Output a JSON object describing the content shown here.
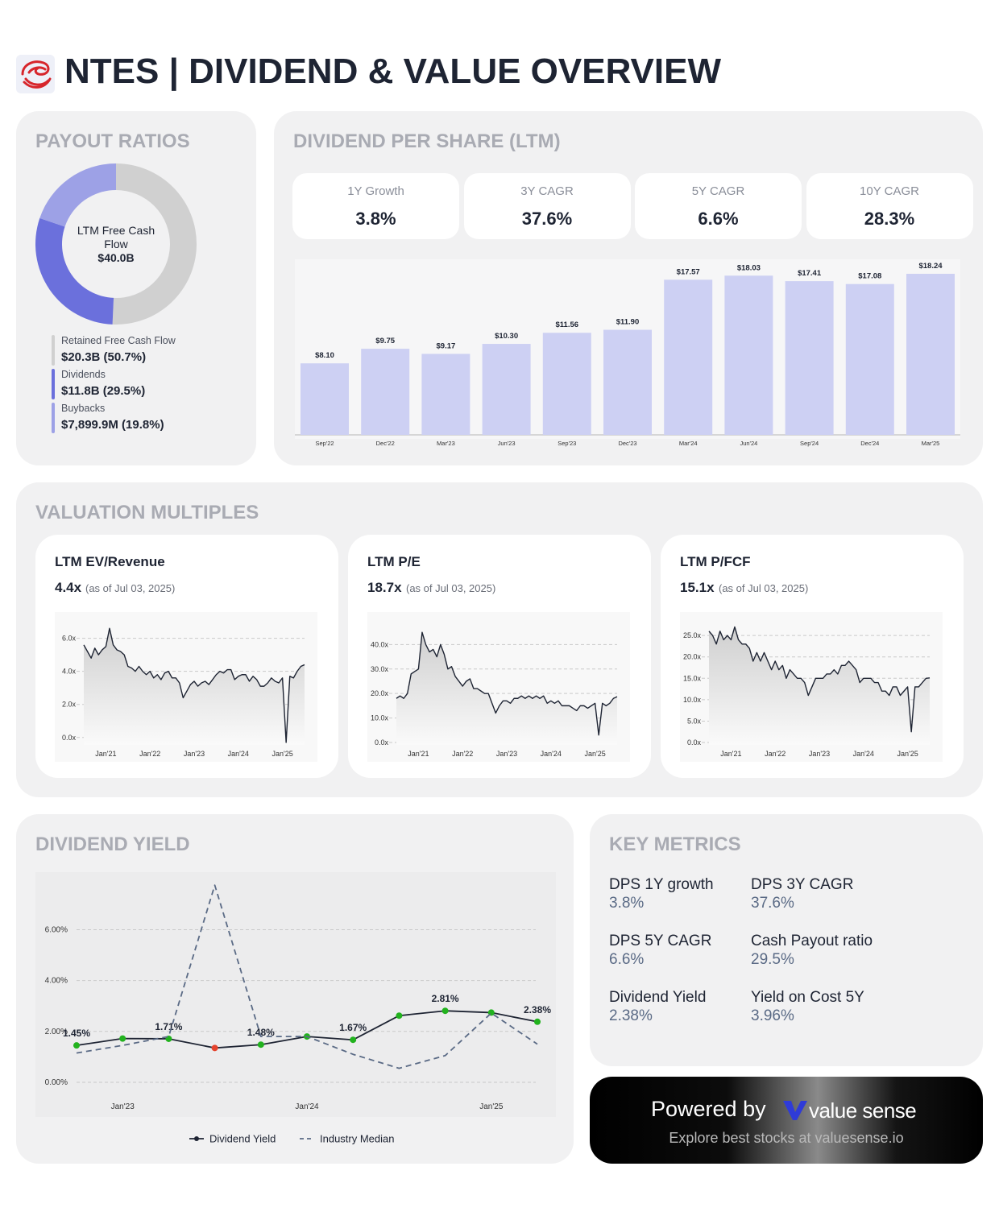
{
  "header": {
    "title": "NTES | DIVIDEND & VALUE OVERVIEW"
  },
  "payout": {
    "heading": "PAYOUT RATIOS",
    "center_label": "LTM Free Cash Flow",
    "center_value": "$40.0B"
  },
  "dps": {
    "heading": "DIVIDEND PER SHARE (LTM)",
    "stats": [
      {
        "label": "1Y Growth",
        "value": "3.8%"
      },
      {
        "label": "3Y CAGR",
        "value": "37.6%"
      },
      {
        "label": "5Y CAGR",
        "value": "6.6%"
      },
      {
        "label": "10Y CAGR",
        "value": "28.3%"
      }
    ]
  },
  "valuation": {
    "heading": "VALUATION MULTIPLES",
    "cards": [
      {
        "title": "LTM EV/Revenue",
        "value": "4.4x",
        "note": "(as of Jul 03, 2025)"
      },
      {
        "title": "LTM P/E",
        "value": "18.7x",
        "note": "(as of Jul 03, 2025)"
      },
      {
        "title": "LTM P/FCF",
        "value": "15.1x",
        "note": "(as of Jul 03, 2025)"
      }
    ]
  },
  "yield": {
    "heading": "DIVIDEND YIELD"
  },
  "key_metrics": {
    "heading": "KEY METRICS",
    "items": [
      {
        "label": "DPS 1Y growth",
        "value": "3.8%"
      },
      {
        "label": "DPS 3Y CAGR",
        "value": "37.6%"
      },
      {
        "label": "DPS 5Y CAGR",
        "value": "6.6%"
      },
      {
        "label": "Cash Payout ratio",
        "value": "29.5%"
      },
      {
        "label": "Dividend Yield",
        "value": "2.38%"
      },
      {
        "label": "Yield on Cost 5Y",
        "value": "3.96%"
      }
    ]
  },
  "footer": {
    "powered": "Powered by",
    "brand": "value sense",
    "tagline": "Explore best stocks at valuesense.io"
  },
  "chart_data": [
    {
      "type": "pie",
      "categories": [
        "Retained Free Cash Flow",
        "Dividends",
        "Buybacks"
      ],
      "values": [
        50.7,
        29.5,
        19.8
      ],
      "value_labels": [
        "$20.3B (50.7%)",
        "$11.8B (29.5%)",
        "$7,899.9M (19.8%)"
      ],
      "colors": [
        "#d0d0d0",
        "#6b70dc",
        "#9da1e6"
      ]
    },
    {
      "type": "bar",
      "categories": [
        "Sep'22",
        "Dec'22",
        "Mar'23",
        "Jun'23",
        "Sep'23",
        "Dec'23",
        "Mar'24",
        "Jun'24",
        "Sep'24",
        "Dec'24",
        "Mar'25"
      ],
      "values": [
        8.1,
        9.75,
        9.17,
        10.3,
        11.56,
        11.9,
        17.57,
        18.03,
        17.41,
        17.08,
        18.24
      ],
      "value_labels": [
        "$8.10",
        "$9.75",
        "$9.17",
        "$10.30",
        "$11.56",
        "$11.90",
        "$17.57",
        "$18.03",
        "$17.41",
        "$17.08",
        "$18.24"
      ],
      "color": "#cdd0f3"
    },
    {
      "type": "line",
      "categories": [
        null,
        null,
        null,
        null,
        null,
        null,
        "Jan'21",
        null,
        null,
        null,
        null,
        null,
        null,
        null,
        null,
        null,
        null,
        null,
        "Jan'22",
        null,
        null,
        null,
        null,
        null,
        null,
        null,
        null,
        null,
        null,
        null,
        "Jan'23",
        null,
        null,
        null,
        null,
        null,
        null,
        null,
        null,
        null,
        null,
        null,
        "Jan'24",
        null,
        null,
        null,
        null,
        null,
        null,
        null,
        null,
        null,
        null,
        null,
        "Jan'25",
        null,
        null,
        null,
        null,
        null,
        null
      ],
      "values": [
        5.6,
        5.2,
        4.8,
        5.4,
        5.0,
        5.3,
        5.5,
        6.6,
        5.6,
        5.3,
        5.2,
        5.0,
        4.3,
        4.2,
        4.0,
        4.3,
        4.0,
        3.8,
        4.0,
        3.6,
        3.8,
        3.5,
        3.9,
        4.0,
        3.6,
        3.6,
        3.3,
        2.4,
        2.8,
        3.2,
        3.4,
        3.1,
        3.3,
        3.4,
        3.2,
        3.5,
        3.8,
        4.0,
        3.9,
        4.1,
        4.1,
        3.5,
        3.7,
        3.8,
        3.8,
        3.4,
        3.7,
        3.5,
        3.1,
        3.1,
        3.3,
        3.6,
        3.4,
        3.3,
        3.6,
        -0.3,
        3.7,
        3.6,
        4.0,
        4.3,
        4.4
      ],
      "color": "#1e2433",
      "ylim": [
        -0.45,
        7.1
      ],
      "yticks": [
        {
          "value": 0,
          "label": "0.0x"
        },
        {
          "value": 2,
          "label": "2.0x"
        },
        {
          "value": 4,
          "label": "4.0x"
        },
        {
          "value": 6,
          "label": "6.0x"
        }
      ],
      "grid": true
    },
    {
      "type": "line",
      "categories": [
        null,
        null,
        null,
        null,
        null,
        null,
        "Jan'21",
        null,
        null,
        null,
        null,
        null,
        null,
        null,
        null,
        null,
        null,
        null,
        "Jan'22",
        null,
        null,
        null,
        null,
        null,
        null,
        null,
        null,
        null,
        null,
        null,
        "Jan'23",
        null,
        null,
        null,
        null,
        null,
        null,
        null,
        null,
        null,
        null,
        null,
        "Jan'24",
        null,
        null,
        null,
        null,
        null,
        null,
        null,
        null,
        null,
        null,
        null,
        "Jan'25",
        null,
        null,
        null,
        null,
        null,
        null
      ],
      "values": [
        18,
        19,
        18,
        20,
        28,
        29,
        30,
        45,
        40,
        37,
        38,
        35,
        40,
        36,
        30,
        31,
        27,
        25,
        23,
        25,
        26,
        22,
        22,
        21,
        20,
        20,
        16,
        12,
        15,
        17,
        17,
        16,
        18,
        18,
        19,
        18,
        19,
        18,
        19,
        18,
        19,
        16,
        17,
        16,
        17,
        15,
        15,
        15,
        14,
        13,
        15,
        15,
        14,
        15,
        16,
        3,
        16,
        15,
        16,
        18,
        18.7
      ],
      "color": "#1e2433",
      "ylim": [
        -1,
        50
      ],
      "yticks": [
        {
          "value": 0,
          "label": "0.0x"
        },
        {
          "value": 10,
          "label": "10.0x"
        },
        {
          "value": 20,
          "label": "20.0x"
        },
        {
          "value": 30,
          "label": "30.0x"
        },
        {
          "value": 40,
          "label": "40.0x"
        }
      ],
      "grid": true
    },
    {
      "type": "line",
      "categories": [
        null,
        null,
        null,
        null,
        null,
        null,
        "Jan'21",
        null,
        null,
        null,
        null,
        null,
        null,
        null,
        null,
        null,
        null,
        null,
        "Jan'22",
        null,
        null,
        null,
        null,
        null,
        null,
        null,
        null,
        null,
        null,
        null,
        "Jan'23",
        null,
        null,
        null,
        null,
        null,
        null,
        null,
        null,
        null,
        null,
        null,
        "Jan'24",
        null,
        null,
        null,
        null,
        null,
        null,
        null,
        null,
        null,
        null,
        null,
        "Jan'25",
        null,
        null,
        null,
        null,
        null,
        null
      ],
      "values": [
        26,
        25,
        23,
        26,
        24,
        25,
        24,
        27,
        24,
        23,
        23,
        22,
        19,
        21,
        19,
        21,
        19,
        17,
        19,
        17,
        18,
        15,
        17,
        16,
        15,
        15,
        14,
        11,
        13,
        15,
        15,
        15,
        16,
        16,
        17,
        16,
        18,
        18,
        19,
        18,
        17,
        14,
        15,
        15,
        15,
        14,
        14,
        12,
        12,
        11,
        13,
        13,
        11,
        12,
        13,
        2.5,
        13,
        13,
        14,
        15,
        15.1
      ],
      "color": "#1e2433",
      "ylim": [
        -0.56,
        28.6
      ],
      "yticks": [
        {
          "value": 0,
          "label": "0.0x"
        },
        {
          "value": 5,
          "label": "5.0x"
        },
        {
          "value": 10,
          "label": "10.0x"
        },
        {
          "value": 15,
          "label": "15.0x"
        },
        {
          "value": 20,
          "label": "20.0x"
        },
        {
          "value": 25,
          "label": "25.0x"
        }
      ],
      "grid": true
    },
    {
      "type": "line",
      "categories": [
        null,
        "Jan'23",
        null,
        null,
        null,
        "Jan'24",
        null,
        null,
        null,
        "Jan'25",
        null
      ],
      "series": [
        {
          "name": "Dividend Yield",
          "color": "#1e2433",
          "values": [
            1.45,
            1.72,
            1.71,
            1.35,
            1.48,
            1.8,
            1.67,
            2.62,
            2.81,
            2.74,
            2.38
          ],
          "value_labels": [
            "1.45%",
            null,
            "1.71%",
            null,
            "1.48%",
            null,
            "1.67%",
            null,
            "2.81%",
            null,
            "2.38%"
          ],
          "point_colors": [
            "#22b21e",
            "#22b21e",
            "#22b21e",
            "#e5432d",
            "#22b21e",
            "#22b21e",
            "#22b21e",
            "#22b21e",
            "#22b21e",
            "#22b21e",
            "#22b21e"
          ]
        },
        {
          "name": "Industry Median",
          "color": "#5a6a85",
          "dash": true,
          "values": [
            1.15,
            1.45,
            1.8,
            7.75,
            1.8,
            1.8,
            1.1,
            0.55,
            1.05,
            2.72,
            1.5
          ]
        }
      ],
      "ylim": [
        -1.3,
        8.2
      ],
      "yticks": [
        {
          "value": 0,
          "label": "0.00%"
        },
        {
          "value": 2,
          "label": "2.00%"
        },
        {
          "value": 4,
          "label": "4.00%"
        },
        {
          "value": 6,
          "label": "6.00%"
        }
      ],
      "grid": true
    }
  ]
}
